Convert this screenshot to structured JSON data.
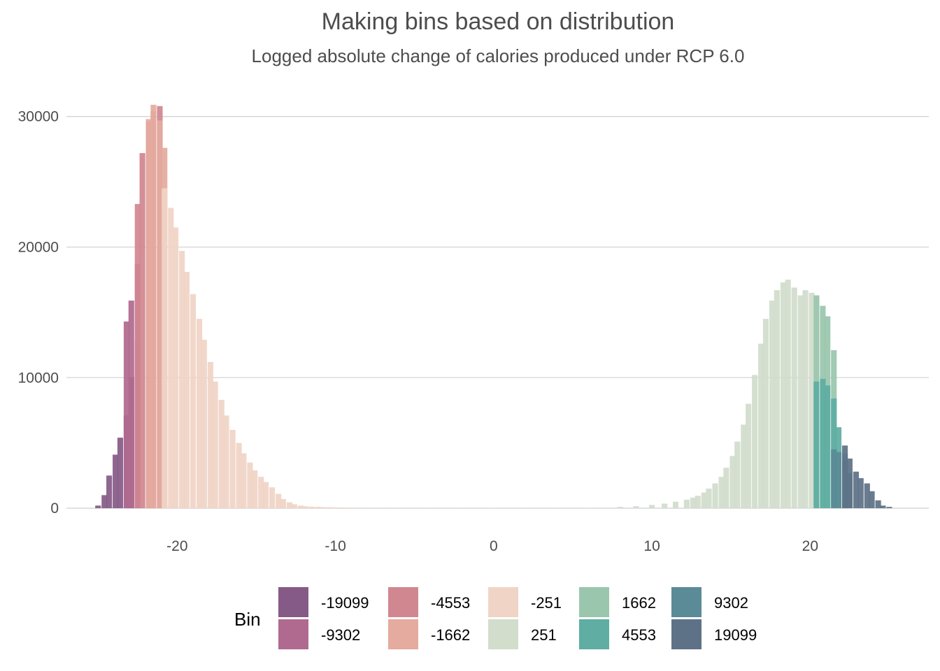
{
  "chart_data": {
    "type": "bar",
    "title": "Making bins based on distribution",
    "subtitle": "Logged absolute change of calories produced under RCP 6.0",
    "xlabel": "",
    "ylabel": "",
    "xlim": [
      -27,
      27.5
    ],
    "ylim": [
      -800,
      32500
    ],
    "x_ticks": [
      -20,
      -10,
      0,
      10,
      20
    ],
    "x_tick_labels": [
      "-20",
      "-10",
      "0",
      "10",
      "20"
    ],
    "y_ticks": [
      0,
      10000,
      20000,
      30000
    ],
    "y_tick_labels": [
      "0",
      "10000",
      "20000",
      "30000"
    ],
    "grid": "horizontal",
    "legend": {
      "title": "Bin",
      "position": "bottom",
      "entries": [
        {
          "label": "-19099",
          "color": "#865a86"
        },
        {
          "label": "-9302",
          "color": "#b06a8f"
        },
        {
          "label": "-4553",
          "color": "#d18790"
        },
        {
          "label": "-1662",
          "color": "#e4ab9e"
        },
        {
          "label": "-251",
          "color": "#f0d4c6"
        },
        {
          "label": "251",
          "color": "#d2ddcc"
        },
        {
          "label": "1662",
          "color": "#9ac6ad"
        },
        {
          "label": "4553",
          "color": "#5fada3"
        },
        {
          "label": "9302",
          "color": "#5a8b97"
        },
        {
          "label": "19099",
          "color": "#5e7287"
        }
      ]
    },
    "bin_width": 0.36,
    "series": [
      {
        "name": "-19099",
        "color": "#865a86",
        "x": [
          -25.0,
          -24.6,
          -24.3,
          -23.9,
          -23.6,
          -23.2,
          -22.9,
          -22.5
        ],
        "values": [
          200,
          1000,
          2500,
          4100,
          5400,
          7100,
          10000,
          12800
        ]
      },
      {
        "name": "-9302",
        "color": "#b06a8f",
        "x": [
          -23.2,
          -22.9,
          -22.5
        ],
        "values": [
          14300,
          15900,
          18700
        ]
      },
      {
        "name": "-4553",
        "color": "#d18790",
        "x": [
          -22.5,
          -22.2,
          -21.8,
          -21.5,
          -21.1
        ],
        "values": [
          23300,
          27200,
          29600,
          30400,
          30800
        ]
      },
      {
        "name": "-1662",
        "color": "#e4ab9e",
        "x": [
          -21.8,
          -21.5,
          -21.1,
          -20.8
        ],
        "values": [
          29800,
          30900,
          29700,
          27600
        ]
      },
      {
        "name": "-251",
        "color": "#f0d4c6",
        "x": [
          -20.8,
          -20.4,
          -20.1,
          -19.7,
          -19.4,
          -19.0,
          -18.6,
          -18.3,
          -17.9,
          -17.6,
          -17.2,
          -16.9,
          -16.5,
          -16.1,
          -15.8,
          -15.4,
          -15.1,
          -14.7,
          -14.4,
          -14.0,
          -13.6,
          -13.3,
          -12.9,
          -12.6,
          -12.2,
          -11.9,
          -11.5,
          -11.1,
          -10.8,
          -10.4,
          -10.1,
          -9.7,
          -9.4,
          -9.0,
          -8.6,
          -7.5,
          -6.0,
          -4.0,
          -2.0,
          0.0,
          2.0,
          4.0,
          6.0
        ],
        "values": [
          24500,
          23000,
          21500,
          19700,
          18100,
          16400,
          14500,
          12900,
          11200,
          9700,
          8300,
          7100,
          6000,
          5000,
          4200,
          3500,
          2900,
          2400,
          2000,
          1600,
          1100,
          700,
          450,
          300,
          200,
          150,
          120,
          100,
          80,
          70,
          60,
          50,
          45,
          40,
          35,
          30,
          25,
          20,
          20,
          15,
          20,
          25,
          30
        ]
      },
      {
        "name": "251",
        "color": "#d2ddcc",
        "x": [
          8.0,
          9.0,
          10.0,
          10.8,
          11.5,
          12.2,
          12.6,
          12.9,
          13.3,
          13.6,
          14.0,
          14.4,
          14.7,
          15.1,
          15.4,
          15.8,
          16.1,
          16.5,
          16.9,
          17.2,
          17.6,
          17.9,
          18.3,
          18.6,
          19.0,
          19.4,
          19.7,
          20.1,
          20.4
        ],
        "values": [
          100,
          150,
          250,
          350,
          500,
          650,
          800,
          950,
          1200,
          1500,
          1900,
          2400,
          3100,
          4000,
          5100,
          6400,
          8000,
          10200,
          12600,
          14500,
          15900,
          16700,
          17300,
          17500,
          16900,
          16300,
          16700,
          16500,
          16300
        ]
      },
      {
        "name": "1662",
        "color": "#9ac6ad",
        "x": [
          20.4,
          20.8,
          21.1,
          21.5
        ],
        "values": [
          16300,
          15500,
          14700,
          12100
        ]
      },
      {
        "name": "4553",
        "color": "#5fada3",
        "x": [
          20.4,
          20.8,
          21.1,
          21.5,
          21.8,
          22.2
        ],
        "values": [
          9700,
          9900,
          9400,
          8400,
          6200,
          4200
        ]
      },
      {
        "name": "9302",
        "color": "#5a8b97",
        "x": [
          21.5,
          21.8,
          22.2,
          22.5
        ],
        "values": [
          4500,
          4300,
          3600,
          2700
        ]
      },
      {
        "name": "19099",
        "color": "#5e7287",
        "x": [
          22.2,
          22.5,
          22.9,
          23.2,
          23.6,
          23.9,
          24.3,
          24.6,
          25.0
        ],
        "values": [
          4800,
          3800,
          2800,
          2300,
          1900,
          1300,
          600,
          200,
          100
        ]
      }
    ]
  }
}
